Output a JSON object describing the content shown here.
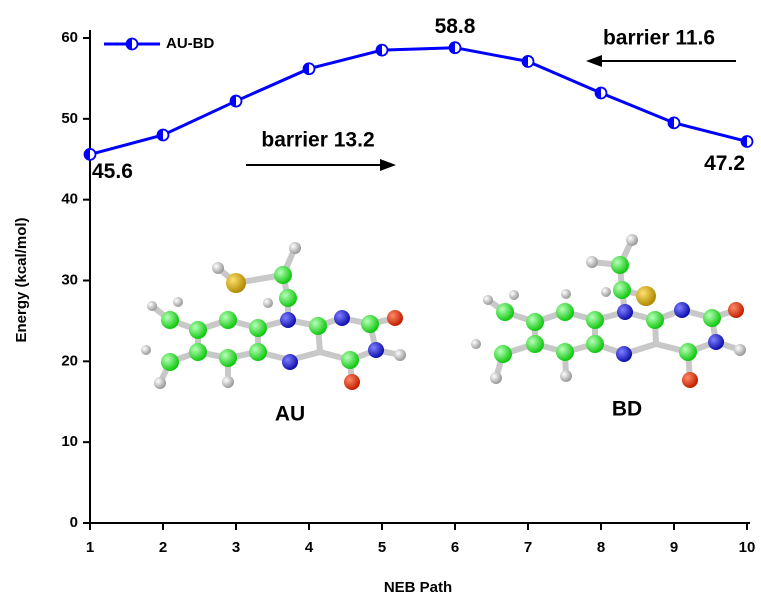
{
  "chart_data": {
    "type": "line",
    "x_label": "NEB Path",
    "y_label": "Energy (kcal/mol)",
    "x": [
      1,
      2,
      3,
      4,
      5,
      6,
      7,
      8,
      9,
      10
    ],
    "series": [
      {
        "name": "AU-BD",
        "color": "#0000ff",
        "values": [
          45.6,
          48.0,
          52.2,
          56.2,
          58.5,
          58.8,
          57.1,
          53.2,
          49.5,
          47.2
        ]
      }
    ],
    "xlim": [
      1,
      10
    ],
    "xticks": [
      1,
      2,
      3,
      4,
      5,
      6,
      7,
      8,
      9,
      10
    ],
    "ylim": [
      0,
      60
    ],
    "yticks": [
      0,
      10,
      20,
      30,
      40,
      50,
      60
    ],
    "legend": "upper left",
    "annotations": [
      "barrier 13.2",
      "barrier 11.6",
      "AU",
      "BD"
    ]
  }
}
